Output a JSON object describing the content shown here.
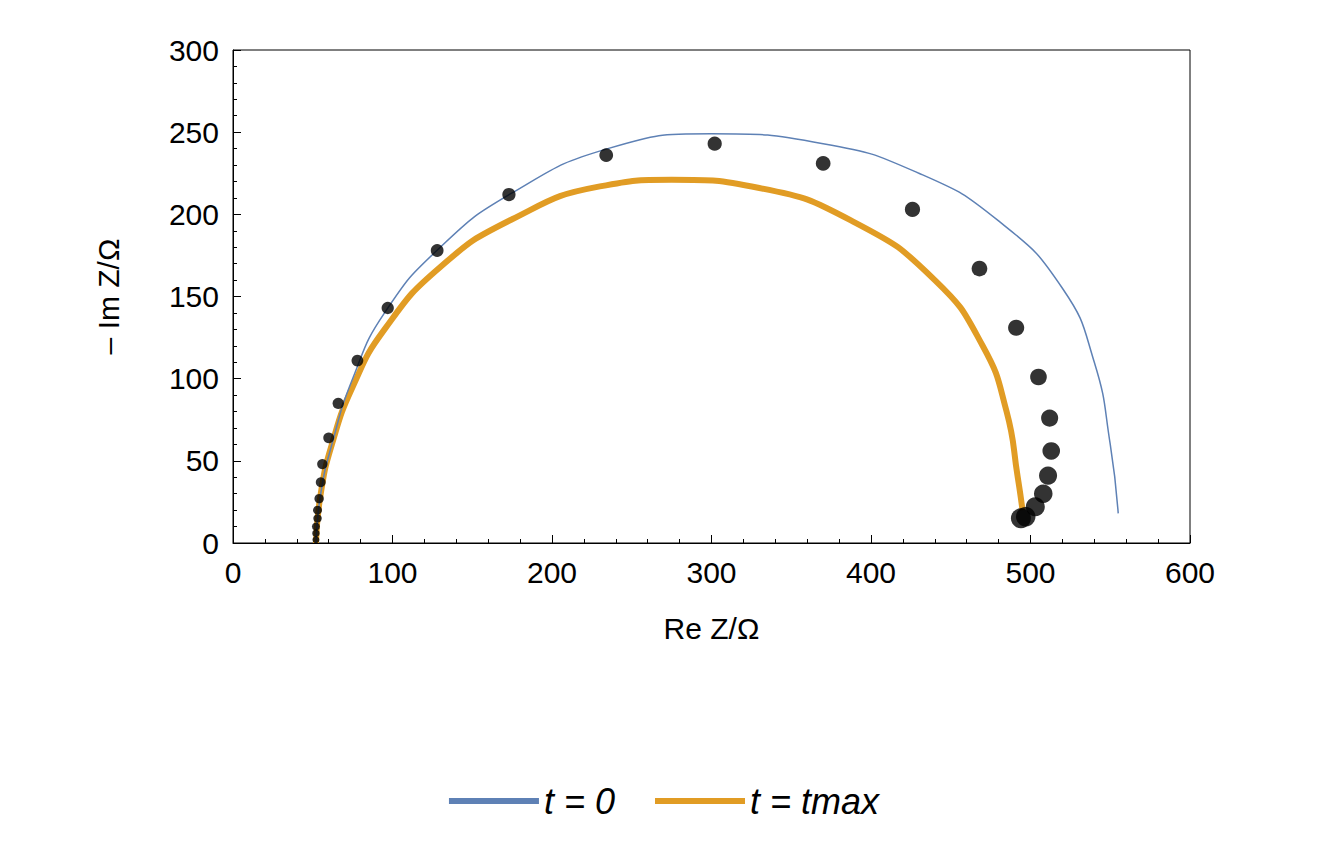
{
  "chart_data": {
    "type": "line",
    "x_label": "Re Z/Ω",
    "y_label": "– Im Z/Ω",
    "xlim": [
      0,
      600
    ],
    "xticks": [
      0,
      100,
      200,
      300,
      400,
      500,
      600
    ],
    "ylim": [
      0,
      300
    ],
    "yticks": [
      0,
      50,
      100,
      150,
      200,
      250,
      300
    ],
    "grid": false,
    "legend": "bottom",
    "series": [
      {
        "name": "t = 0",
        "type": "line",
        "color": "#5e81b5",
        "line_style": "solid",
        "x": [
          52,
          55,
          62,
          75,
          95,
          130,
          175,
          235,
          300,
          370,
          430,
          480,
          520,
          540,
          550,
          555
        ],
        "values": [
          0,
          30,
          60,
          100,
          140,
          180,
          213,
          240,
          249,
          243,
          225,
          196,
          155,
          110,
          60,
          18
        ]
      },
      {
        "name": "t = tmax",
        "type": "line",
        "color": "#e19c24",
        "line_style": "solid",
        "x": [
          52,
          55,
          62,
          75,
          95,
          130,
          175,
          230,
          275,
          330,
          390,
          440,
          470,
          485,
          492,
          495
        ],
        "values": [
          0,
          30,
          60,
          95,
          130,
          168,
          197,
          217,
          221,
          216,
          195,
          160,
          120,
          80,
          40,
          20
        ]
      },
      {
        "type": "scatter",
        "color": "#000000",
        "marker": "circle",
        "x": [
          52,
          52,
          52,
          53,
          53,
          54,
          55,
          56,
          60,
          66,
          78,
          97,
          128,
          173,
          234,
          302,
          370,
          426,
          468,
          491,
          505,
          512,
          513,
          511,
          508,
          503,
          497,
          494
        ],
        "values": [
          2,
          6,
          10,
          15,
          20,
          27,
          37,
          48,
          64,
          85,
          111,
          143,
          178,
          212,
          236,
          243,
          231,
          203,
          167,
          131,
          101,
          76,
          56,
          41,
          30,
          22,
          16,
          15
        ]
      }
    ]
  }
}
